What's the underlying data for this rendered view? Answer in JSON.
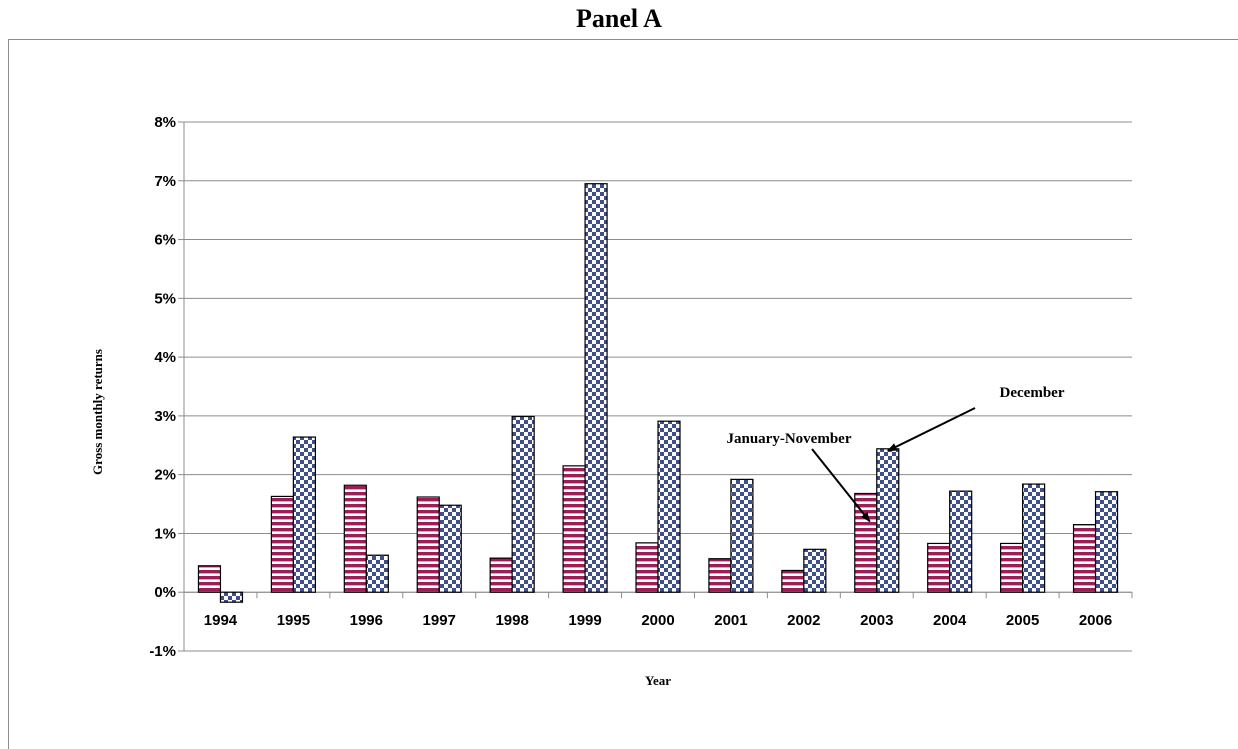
{
  "panel_title": "Panel A",
  "chart_data": {
    "type": "bar",
    "title": "",
    "xlabel": "Year",
    "ylabel": "Gross monthly returns",
    "categories": [
      "1994",
      "1995",
      "1996",
      "1997",
      "1998",
      "1999",
      "2000",
      "2001",
      "2002",
      "2003",
      "2004",
      "2005",
      "2006"
    ],
    "series": [
      {
        "name": "January-November",
        "values": [
          0.45,
          1.63,
          1.82,
          1.62,
          0.58,
          2.15,
          0.84,
          0.57,
          0.37,
          1.68,
          0.83,
          0.83,
          1.15
        ],
        "color": "#9b1f56",
        "pattern": "horizontal-stripes"
      },
      {
        "name": "December",
        "values": [
          -0.17,
          2.64,
          0.63,
          1.48,
          2.99,
          6.95,
          2.91,
          1.92,
          0.73,
          2.44,
          1.72,
          1.84,
          1.71
        ],
        "color": "#3f4f8a",
        "pattern": "checkerboard"
      }
    ],
    "ylim": [
      -1,
      8
    ],
    "yticks": [
      -1,
      0,
      1,
      2,
      3,
      4,
      5,
      6,
      7,
      8
    ],
    "ytick_labels": [
      "-1%",
      "0%",
      "1%",
      "2%",
      "3%",
      "4%",
      "5%",
      "6%",
      "7%",
      "8%"
    ],
    "grid": true,
    "legend": "none",
    "annotations": [
      {
        "text": "January-November",
        "points_to": {
          "series": "January-November",
          "category": "2003"
        }
      },
      {
        "text": "December",
        "points_to": {
          "series": "December",
          "category": "2003"
        }
      }
    ]
  }
}
